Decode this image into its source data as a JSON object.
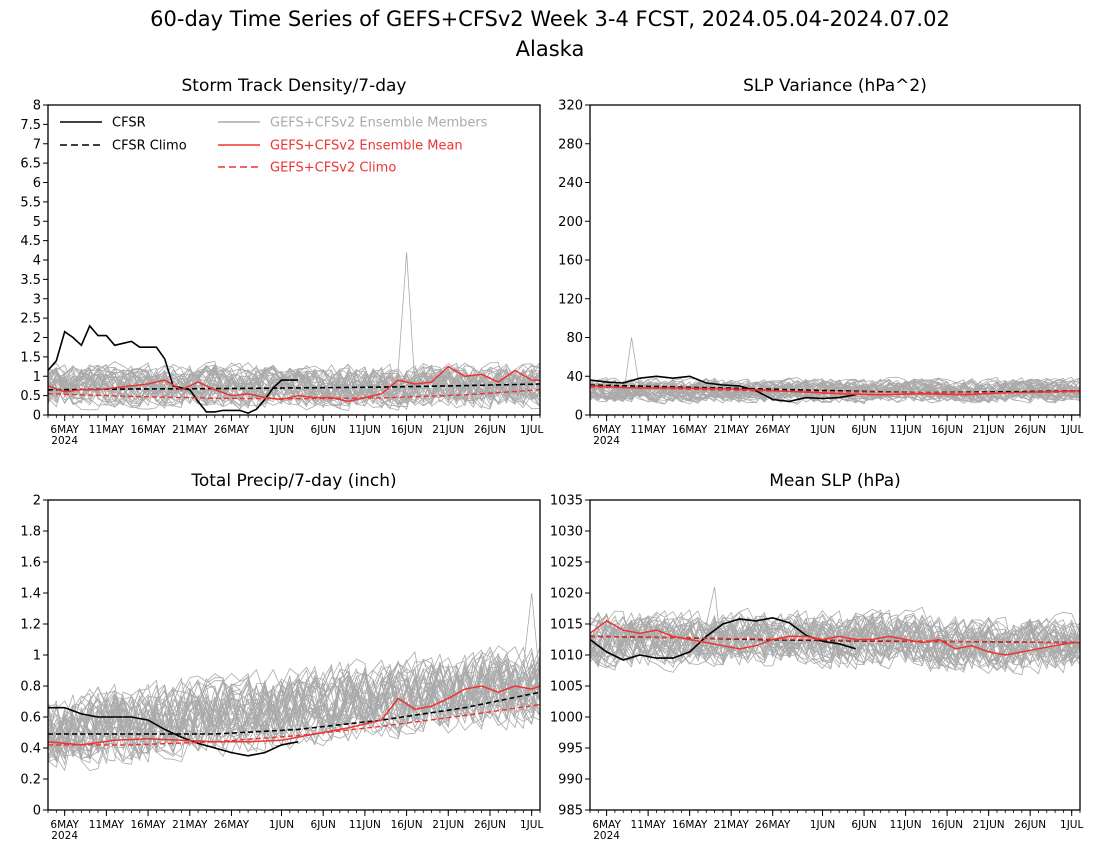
{
  "title": {
    "line1": "60-day Time Series of GEFS+CFSv2 Week 3-4 FCST, 2024.05.04-2024.07.02",
    "line2": "Alaska"
  },
  "x_axis": {
    "ticks": [
      {
        "day": 2,
        "label": "6MAY"
      },
      {
        "day": 7,
        "label": "11MAY"
      },
      {
        "day": 12,
        "label": "16MAY"
      },
      {
        "day": 17,
        "label": "21MAY"
      },
      {
        "day": 22,
        "label": "26MAY"
      },
      {
        "day": 28,
        "label": "1JUN"
      },
      {
        "day": 33,
        "label": "6JUN"
      },
      {
        "day": 38,
        "label": "11JUN"
      },
      {
        "day": 43,
        "label": "16JUN"
      },
      {
        "day": 48,
        "label": "21JUN"
      },
      {
        "day": 53,
        "label": "26JUN"
      },
      {
        "day": 58,
        "label": "1JUL"
      }
    ],
    "year_label": "2024",
    "range": [
      0,
      59
    ]
  },
  "legend": {
    "cfsr": "CFSR",
    "cfsr_climo": "CFSR Climo",
    "members": "GEFS+CFSv2 Ensemble Members",
    "mean": "GEFS+CFSv2 Ensemble Mean",
    "gefs_climo": "GEFS+CFSv2 Climo"
  },
  "colors": {
    "cfsr": "#000000",
    "members": "#aaaaaa",
    "mean": "#ee3333",
    "gefs_climo": "#ee3333"
  },
  "chart_data": [
    {
      "type": "line",
      "title": "Storm Track Density/7-day",
      "ylim": [
        0,
        8
      ],
      "yticks": [
        "0",
        "0.5",
        "1",
        "1.5",
        "2",
        "2.5",
        "3",
        "3.5",
        "4",
        "4.5",
        "5",
        "5.5",
        "6",
        "6.5",
        "7",
        "7.5",
        "8"
      ],
      "ytick_values": [
        0,
        0.5,
        1,
        1.5,
        2,
        2.5,
        3,
        3.5,
        4,
        4.5,
        5,
        5.5,
        6,
        6.5,
        7,
        7.5,
        8
      ],
      "show_legend": true,
      "members": {
        "count": 40,
        "center": 0.75,
        "spread": 0.45,
        "max_peak": 4.2,
        "peak_day": 43
      },
      "series": [
        {
          "name": "CFSR",
          "style": "solid-black",
          "x": [
            0,
            1,
            2,
            3,
            4,
            5,
            6,
            7,
            8,
            9,
            10,
            11,
            12,
            13,
            14,
            15,
            16,
            17,
            18,
            19,
            20,
            21,
            22,
            23,
            24,
            25,
            26,
            27,
            28,
            29,
            30
          ],
          "values": [
            1.15,
            1.4,
            2.15,
            2.0,
            1.8,
            2.3,
            2.05,
            2.05,
            1.8,
            1.85,
            1.9,
            1.75,
            1.75,
            1.75,
            1.45,
            0.75,
            0.7,
            0.65,
            0.35,
            0.08,
            0.08,
            0.12,
            0.12,
            0.12,
            0.05,
            0.15,
            0.4,
            0.7,
            0.9,
            0.9,
            0.9
          ]
        },
        {
          "name": "CFSR Climo",
          "style": "dashed-black",
          "x": [
            0,
            10,
            20,
            30,
            40,
            50,
            59
          ],
          "values": [
            0.65,
            0.67,
            0.68,
            0.7,
            0.72,
            0.76,
            0.8
          ]
        },
        {
          "name": "GEFS+CFSv2 Ensemble Mean",
          "style": "solid-red",
          "x": [
            0,
            2,
            4,
            6,
            8,
            10,
            12,
            14,
            16,
            18,
            20,
            22,
            24,
            26,
            28,
            30,
            32,
            34,
            36,
            38,
            40,
            42,
            44,
            46,
            48,
            50,
            52,
            54,
            56,
            58,
            59
          ],
          "values": [
            0.75,
            0.6,
            0.65,
            0.65,
            0.7,
            0.75,
            0.8,
            0.9,
            0.65,
            0.85,
            0.65,
            0.5,
            0.55,
            0.45,
            0.4,
            0.5,
            0.45,
            0.45,
            0.35,
            0.45,
            0.55,
            0.9,
            0.8,
            0.85,
            1.25,
            1.0,
            1.05,
            0.85,
            1.15,
            0.9,
            0.9
          ]
        },
        {
          "name": "GEFS+CFSv2 Climo",
          "style": "dashed-red",
          "x": [
            0,
            10,
            20,
            30,
            40,
            50,
            59
          ],
          "values": [
            0.55,
            0.48,
            0.43,
            0.42,
            0.44,
            0.52,
            0.65
          ]
        }
      ]
    },
    {
      "type": "line",
      "title": "SLP Variance (hPa^2)",
      "ylim": [
        0,
        320
      ],
      "yticks": [
        "0",
        "40",
        "80",
        "120",
        "160",
        "200",
        "240",
        "280",
        "320"
      ],
      "ytick_values": [
        0,
        40,
        80,
        120,
        160,
        200,
        240,
        280,
        320
      ],
      "show_legend": false,
      "members": {
        "count": 40,
        "center": 25,
        "spread": 10,
        "max_peak": 80,
        "peak_day": 5
      },
      "series": [
        {
          "name": "CFSR",
          "style": "solid-black",
          "x": [
            0,
            2,
            4,
            6,
            8,
            10,
            12,
            14,
            16,
            18,
            20,
            22,
            24,
            26,
            28,
            30,
            32
          ],
          "values": [
            36,
            34,
            33,
            38,
            40,
            38,
            40,
            33,
            31,
            30,
            25,
            16,
            14,
            18,
            17,
            18,
            21
          ]
        },
        {
          "name": "CFSR Climo",
          "style": "dashed-black",
          "x": [
            0,
            10,
            20,
            30,
            40,
            50,
            59
          ],
          "values": [
            31,
            29,
            27,
            25,
            23,
            24,
            25
          ]
        },
        {
          "name": "GEFS+CFSv2 Ensemble Mean",
          "style": "solid-red",
          "x": [
            0,
            5,
            10,
            15,
            20,
            25,
            30,
            35,
            40,
            45,
            50,
            55,
            59
          ],
          "values": [
            30,
            28,
            28,
            27,
            26,
            24,
            22,
            21,
            22,
            21,
            23,
            24,
            25
          ]
        },
        {
          "name": "GEFS+CFSv2 Climo",
          "style": "dashed-red",
          "x": [
            0,
            10,
            20,
            30,
            40,
            50,
            59
          ],
          "values": [
            29,
            27,
            25,
            24,
            23,
            23,
            24
          ]
        }
      ]
    },
    {
      "type": "line",
      "title": "Total Precip/7-day (inch)",
      "ylim": [
        0,
        2
      ],
      "yticks": [
        "0",
        "0.2",
        "0.4",
        "0.6",
        "0.8",
        "1",
        "1.2",
        "1.4",
        "1.6",
        "1.8",
        "2"
      ],
      "ytick_values": [
        0,
        0.2,
        0.4,
        0.6,
        0.8,
        1.0,
        1.2,
        1.4,
        1.6,
        1.8,
        2.0
      ],
      "show_legend": false,
      "members": {
        "count": 40,
        "center": 0.5,
        "spread": 0.2,
        "max_peak": 1.4,
        "peak_day": 58
      },
      "series": [
        {
          "name": "CFSR",
          "style": "solid-black",
          "x": [
            0,
            2,
            4,
            6,
            8,
            10,
            12,
            14,
            16,
            18,
            20,
            22,
            24,
            26,
            28,
            30
          ],
          "values": [
            0.66,
            0.66,
            0.62,
            0.6,
            0.6,
            0.6,
            0.58,
            0.52,
            0.47,
            0.43,
            0.4,
            0.37,
            0.35,
            0.37,
            0.42,
            0.44
          ]
        },
        {
          "name": "CFSR Climo",
          "style": "dashed-black",
          "x": [
            0,
            10,
            20,
            30,
            40,
            50,
            59
          ],
          "values": [
            0.49,
            0.49,
            0.49,
            0.52,
            0.58,
            0.66,
            0.76
          ]
        },
        {
          "name": "GEFS+CFSv2 Ensemble Mean",
          "style": "solid-red",
          "x": [
            0,
            4,
            8,
            12,
            16,
            20,
            24,
            28,
            32,
            36,
            40,
            42,
            44,
            46,
            48,
            50,
            52,
            54,
            56,
            58,
            59
          ],
          "values": [
            0.44,
            0.42,
            0.45,
            0.46,
            0.45,
            0.44,
            0.44,
            0.45,
            0.49,
            0.53,
            0.58,
            0.72,
            0.65,
            0.67,
            0.72,
            0.78,
            0.8,
            0.76,
            0.8,
            0.78,
            0.8
          ]
        },
        {
          "name": "GEFS+CFSv2 Climo",
          "style": "dashed-red",
          "x": [
            0,
            10,
            20,
            30,
            40,
            50,
            59
          ],
          "values": [
            0.42,
            0.42,
            0.44,
            0.48,
            0.54,
            0.61,
            0.68
          ]
        }
      ]
    },
    {
      "type": "line",
      "title": "Mean SLP (hPa)",
      "ylim": [
        985,
        1035
      ],
      "yticks": [
        "985",
        "990",
        "995",
        "1000",
        "1005",
        "1010",
        "1015",
        "1020",
        "1025",
        "1030",
        "1035"
      ],
      "ytick_values": [
        985,
        990,
        995,
        1000,
        1005,
        1010,
        1015,
        1020,
        1025,
        1030,
        1035
      ],
      "show_legend": false,
      "members": {
        "count": 40,
        "center": 1012.5,
        "spread": 3.5,
        "max_peak": 1021,
        "peak_day": 15
      },
      "series": [
        {
          "name": "CFSR",
          "style": "solid-black",
          "x": [
            0,
            2,
            4,
            6,
            8,
            10,
            12,
            14,
            16,
            18,
            20,
            22,
            24,
            26,
            28,
            30,
            32
          ],
          "values": [
            1012.5,
            1010.5,
            1009.2,
            1010,
            1009.5,
            1009.5,
            1010.5,
            1013,
            1015,
            1015.8,
            1015.5,
            1016,
            1015.2,
            1013.2,
            1012.2,
            1011.8,
            1011
          ]
        },
        {
          "name": "CFSR Climo",
          "style": "dashed-black",
          "x": [
            0,
            10,
            20,
            30,
            40,
            50,
            59
          ],
          "values": [
            1013,
            1012.8,
            1012.5,
            1012.3,
            1012.2,
            1012.1,
            1012
          ]
        },
        {
          "name": "GEFS+CFSv2 Ensemble Mean",
          "style": "solid-red",
          "x": [
            0,
            2,
            4,
            6,
            8,
            10,
            12,
            14,
            16,
            18,
            20,
            22,
            24,
            26,
            28,
            30,
            32,
            34,
            36,
            38,
            40,
            42,
            44,
            46,
            48,
            50,
            52,
            54,
            56,
            58,
            59
          ],
          "values": [
            1013.5,
            1015.5,
            1014,
            1013.5,
            1014,
            1013,
            1012.5,
            1012,
            1011.5,
            1011,
            1011.5,
            1012.5,
            1013,
            1013,
            1012.5,
            1013,
            1012.5,
            1012.5,
            1013,
            1012.5,
            1012,
            1012.5,
            1011,
            1011.5,
            1010.5,
            1010,
            1010.5,
            1011,
            1011.5,
            1012,
            1012
          ]
        },
        {
          "name": "GEFS+CFSv2 Climo",
          "style": "dashed-red",
          "x": [
            0,
            10,
            20,
            30,
            40,
            50,
            59
          ],
          "values": [
            1013,
            1012.8,
            1012.6,
            1012.4,
            1012.2,
            1012.1,
            1012
          ]
        }
      ]
    }
  ]
}
